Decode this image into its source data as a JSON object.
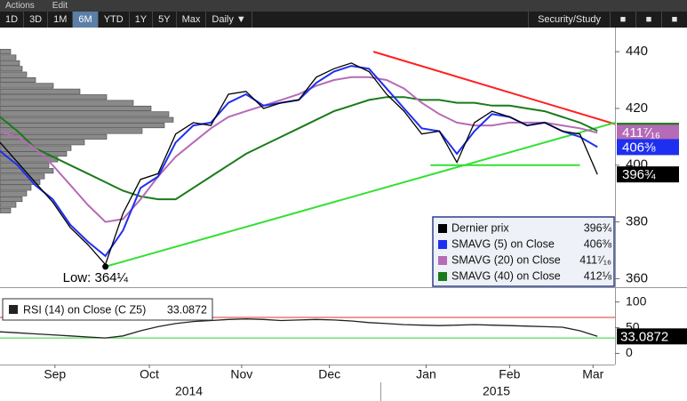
{
  "toolbar": {
    "menu": [
      "Actions",
      "Edit"
    ],
    "ranges": [
      "1D",
      "3D",
      "1M",
      "6M",
      "YTD",
      "1Y",
      "5Y",
      "Max"
    ],
    "selected_range": "6M",
    "period": "Daily ▼",
    "study": "Security/Study"
  },
  "chart_data": [
    {
      "type": "line",
      "x": [
        0,
        4,
        8,
        12,
        16,
        20,
        24,
        28,
        32,
        36,
        40,
        44,
        48,
        52,
        56,
        60,
        64,
        68,
        72,
        76,
        80,
        84,
        88,
        92,
        96,
        100,
        104,
        108,
        112,
        116,
        120,
        124,
        128,
        132,
        136
      ],
      "xlim": [
        0,
        140
      ],
      "xticks": [
        {
          "value": 12.5,
          "label": "Sep"
        },
        {
          "value": 34,
          "label": "Oct"
        },
        {
          "value": 55,
          "label": "Nov"
        },
        {
          "value": 75,
          "label": "Dec"
        },
        {
          "value": 97,
          "label": "Jan"
        },
        {
          "value": 116,
          "label": "Feb"
        },
        {
          "value": 135,
          "label": "Mar"
        }
      ],
      "xgroups": [
        {
          "value": 43,
          "label": "2014"
        },
        {
          "value": 113,
          "label": "2015"
        }
      ],
      "ylim": [
        357,
        448.5
      ],
      "yticks": [
        360,
        380,
        400,
        420,
        440
      ],
      "series": [
        {
          "name": "Dernier prix",
          "color": "#000000",
          "last_label": "396¾",
          "values": [
            408,
            401,
            394,
            387,
            378,
            372,
            365,
            383,
            395,
            397,
            411,
            415,
            414,
            425,
            426,
            420,
            422,
            423,
            431,
            434,
            436,
            433,
            425,
            419,
            411,
            412,
            401,
            415,
            419,
            417,
            414,
            415,
            412,
            411,
            396.75
          ]
        },
        {
          "name": "SMAVG (5) on Close",
          "color": "#1f2ff0",
          "last_label": "406⅜",
          "values": [
            405,
            400,
            393,
            388,
            379,
            373,
            368,
            377,
            392,
            396,
            408,
            414,
            415,
            422,
            425,
            421,
            422,
            423,
            429,
            433,
            435,
            434,
            427,
            420,
            413,
            412,
            404,
            412,
            418,
            417,
            414,
            415,
            412,
            410,
            406.375
          ]
        },
        {
          "name": "SMAVG (20) on Close",
          "color": "#b56bb5",
          "last_label": "411⁷⁄₁₆",
          "values": [
            412,
            410,
            406,
            400,
            393,
            386,
            380,
            381,
            388,
            396,
            403,
            408,
            413,
            417,
            419,
            421,
            423,
            425,
            428,
            430,
            431,
            431,
            430,
            427,
            422,
            418,
            415,
            414,
            414,
            415,
            415,
            415,
            414,
            413,
            411.4375
          ]
        },
        {
          "name": "SMAVG (40) on Close",
          "color": "#1b7a1b",
          "last_label": "412⅛",
          "values": [
            417,
            412,
            406,
            403,
            400,
            397,
            394,
            391,
            389,
            388,
            388,
            392,
            396,
            400,
            404,
            407,
            410,
            413,
            416,
            419,
            421,
            423,
            424,
            424,
            423,
            423,
            422,
            422,
            421,
            421,
            420,
            419,
            417,
            415,
            412.125
          ]
        }
      ],
      "trendlines": [
        {
          "color": "#ff2020",
          "x": [
            85,
            140
          ],
          "y": [
            440,
            414.5
          ]
        },
        {
          "color": "#33e033",
          "x": [
            24,
            140
          ],
          "y": [
            364.25,
            415
          ]
        },
        {
          "color": "#33e033",
          "x": [
            98,
            132
          ],
          "y": [
            400,
            400
          ]
        }
      ],
      "low": {
        "label": "Low: 364¼",
        "x": 24,
        "value": 364.25
      },
      "profile": {
        "lim": [
          0,
          692
        ],
        "levels": [
          440,
          438,
          436,
          434,
          432,
          430,
          428,
          426,
          424,
          422,
          420,
          418,
          416,
          414,
          412,
          410,
          408,
          406,
          404,
          402,
          400,
          398,
          396,
          394,
          392,
          390,
          388,
          386,
          384
        ],
        "values": [
          12,
          18,
          22,
          25,
          30,
          40,
          60,
          90,
          120,
          150,
          170,
          190,
          195,
          185,
          160,
          120,
          95,
          80,
          75,
          65,
          55,
          60,
          50,
          45,
          35,
          30,
          25,
          18,
          12
        ],
        "color": "#8a8a8a"
      }
    },
    {
      "type": "line",
      "x": [
        0,
        4,
        8,
        12,
        16,
        20,
        24,
        28,
        32,
        36,
        40,
        44,
        48,
        52,
        56,
        60,
        64,
        68,
        72,
        76,
        80,
        84,
        88,
        92,
        96,
        100,
        104,
        108,
        112,
        116,
        120,
        124,
        128,
        132,
        136
      ],
      "xlim": [
        0,
        140
      ],
      "ylim": [
        -21.7,
        116.7
      ],
      "yticks": [
        0,
        50,
        100
      ],
      "levels": [
        {
          "value": 70,
          "color": "#e03030"
        },
        {
          "value": 30,
          "color": "#33d033"
        }
      ],
      "series": [
        {
          "name": "RSI (14) on Close (C Z5)",
          "color": "#222222",
          "values": [
            42,
            40,
            38,
            36,
            34,
            32,
            30,
            34,
            44,
            52,
            58,
            62,
            64,
            66,
            67,
            66,
            64,
            65,
            66,
            65,
            63,
            60,
            58,
            56,
            55,
            54,
            55,
            56,
            55,
            54,
            53,
            52,
            51,
            44,
            33.0872
          ]
        }
      ]
    }
  ]
}
